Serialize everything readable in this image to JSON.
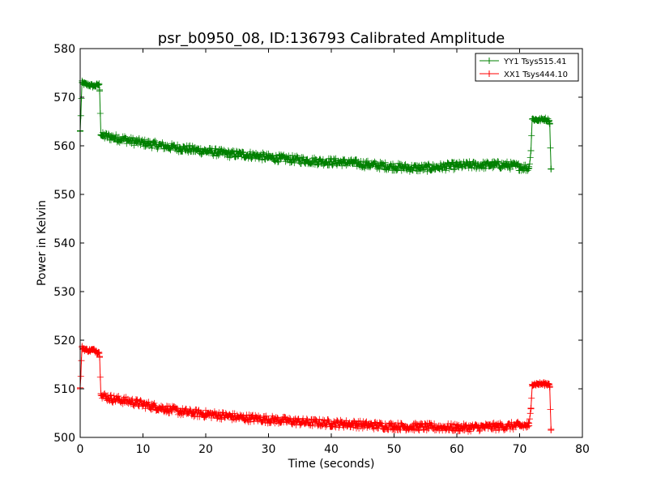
{
  "chart_data": {
    "type": "line",
    "title": "psr_b0950_08, ID:136793 Calibrated Amplitude",
    "xlabel": "Time (seconds)",
    "ylabel": "Power in Kelvin",
    "xlim": [
      0,
      80
    ],
    "ylim": [
      500,
      580
    ],
    "xticks": [
      0,
      10,
      20,
      30,
      40,
      50,
      60,
      70,
      80
    ],
    "yticks": [
      500,
      510,
      520,
      530,
      540,
      550,
      560,
      570,
      580
    ],
    "grid": false,
    "legend_position": "top-right",
    "series": [
      {
        "name": "YY1 Tsys515.41",
        "color": "#008000",
        "marker": "+",
        "x": [
          0.0,
          0.3,
          0.6,
          1.0,
          1.5,
          2.0,
          2.5,
          3.0,
          3.1,
          3.3,
          3.6,
          4.0,
          5.0,
          6.0,
          7.0,
          8.0,
          9.0,
          10.0,
          12.0,
          14.0,
          16.0,
          18.0,
          20.0,
          22.0,
          24.0,
          26.0,
          28.0,
          30.0,
          32.0,
          34.0,
          36.0,
          38.0,
          40.0,
          42.0,
          44.0,
          46.0,
          48.0,
          50.0,
          52.0,
          54.0,
          56.0,
          58.0,
          60.0,
          62.0,
          64.0,
          66.0,
          68.0,
          70.0,
          71.5,
          71.8,
          72.0,
          73.0,
          74.0,
          74.7,
          74.8,
          75.0
        ],
        "y": [
          563.0,
          573.0,
          572.8,
          572.6,
          572.5,
          572.3,
          572.4,
          572.6,
          571.5,
          562.3,
          562.0,
          562.0,
          561.8,
          561.5,
          561.4,
          561.0,
          560.8,
          560.6,
          560.2,
          559.8,
          559.5,
          559.2,
          558.9,
          558.6,
          558.3,
          558.2,
          558.0,
          557.6,
          557.4,
          557.2,
          557.0,
          556.8,
          556.7,
          556.6,
          556.4,
          556.1,
          555.9,
          555.7,
          555.5,
          555.4,
          555.5,
          555.7,
          555.9,
          556.0,
          556.0,
          556.1,
          556.0,
          555.7,
          555.4,
          559.0,
          565.5,
          565.3,
          565.5,
          565.2,
          564.5,
          555.2
        ]
      },
      {
        "name": "XX1 Tsys444.10",
        "color": "#ff0000",
        "marker": "+",
        "x": [
          0.0,
          0.3,
          0.6,
          1.0,
          1.5,
          2.0,
          2.5,
          3.0,
          3.1,
          3.3,
          3.6,
          4.0,
          5.0,
          6.0,
          7.0,
          8.0,
          9.0,
          10.0,
          12.0,
          14.0,
          16.0,
          18.0,
          20.0,
          22.0,
          24.0,
          26.0,
          28.0,
          30.0,
          32.0,
          34.0,
          36.0,
          38.0,
          40.0,
          42.0,
          44.0,
          46.0,
          48.0,
          50.0,
          52.0,
          54.0,
          56.0,
          58.0,
          60.0,
          62.0,
          64.0,
          66.0,
          68.0,
          70.0,
          71.5,
          71.8,
          72.0,
          73.0,
          74.0,
          74.7,
          74.8,
          75.0
        ],
        "y": [
          510.0,
          518.5,
          518.2,
          518.0,
          517.9,
          518.0,
          517.8,
          517.5,
          516.5,
          509.0,
          508.6,
          508.4,
          508.0,
          507.8,
          507.6,
          507.4,
          507.1,
          506.8,
          506.3,
          505.8,
          505.3,
          505.0,
          504.8,
          504.6,
          504.3,
          504.0,
          503.9,
          503.7,
          503.5,
          503.3,
          503.1,
          503.0,
          502.9,
          502.8,
          502.7,
          502.5,
          502.4,
          502.3,
          502.2,
          502.2,
          502.1,
          502.1,
          502.0,
          502.0,
          502.1,
          502.2,
          502.3,
          502.4,
          502.4,
          506.0,
          510.9,
          511.0,
          511.0,
          511.0,
          510.5,
          501.5
        ]
      }
    ]
  }
}
